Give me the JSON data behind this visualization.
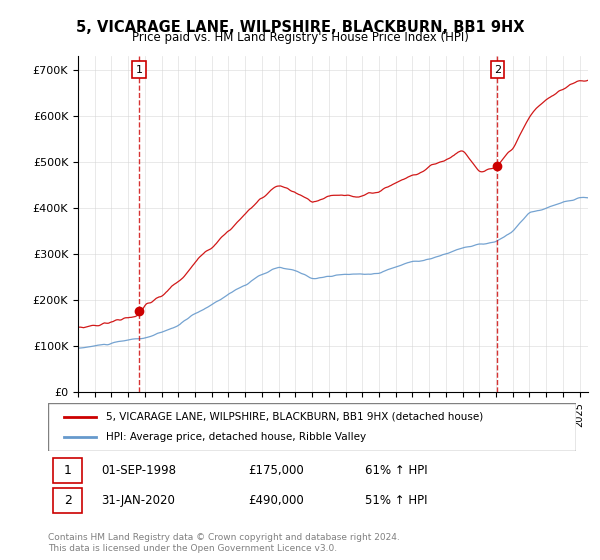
{
  "title_line1": "5, VICARAGE LANE, WILPSHIRE, BLACKBURN, BB1 9HX",
  "title_line2": "Price paid vs. HM Land Registry's House Price Index (HPI)",
  "legend_label1": "5, VICARAGE LANE, WILPSHIRE, BLACKBURN, BB1 9HX (detached house)",
  "legend_label2": "HPI: Average price, detached house, Ribble Valley",
  "sale1_label": "1",
  "sale1_date": "01-SEP-1998",
  "sale1_price": "£175,000",
  "sale1_hpi": "61% ↑ HPI",
  "sale2_label": "2",
  "sale2_date": "31-JAN-2020",
  "sale2_price": "£490,000",
  "sale2_hpi": "51% ↑ HPI",
  "footer": "Contains HM Land Registry data © Crown copyright and database right 2024.\nThis data is licensed under the Open Government Licence v3.0.",
  "red_color": "#cc0000",
  "blue_color": "#6699cc",
  "vline_color": "#cc0000",
  "marker_color": "#cc0000",
  "ylim": [
    0,
    730000
  ],
  "xlabel": "",
  "ylabel": ""
}
